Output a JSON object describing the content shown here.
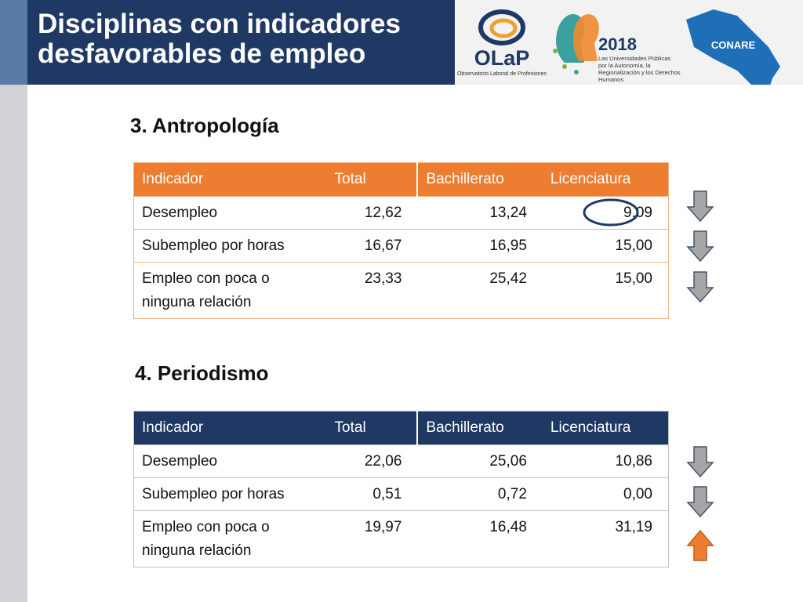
{
  "header": {
    "title": "Disciplinas con indicadores desfavorables de empleo"
  },
  "logos": {
    "olap": "OLaP",
    "olap_subtitle": "Observatorio Laboral de Profesiones",
    "year": "2018",
    "motto": "Las Universidades Públicas por la Autonomía, la Regionalización y los Derechos Humanos",
    "conare": "CONARE"
  },
  "sections": [
    {
      "title": "3. Antropología",
      "columns": [
        "Indicador",
        "Total",
        "Bachillerato",
        "Licenciatura"
      ],
      "rows": [
        [
          "Desempleo",
          "12,62",
          "13,24",
          "9,09"
        ],
        [
          "Subempleo por horas",
          "16,67",
          "16,95",
          "15,00"
        ],
        [
          "Empleo con poca o ninguna relación",
          "23,33",
          "25,42",
          "15,00"
        ]
      ]
    },
    {
      "title": "4. Periodismo",
      "columns": [
        "Indicador",
        "Total",
        "Bachillerato",
        "Licenciatura"
      ],
      "rows": [
        [
          "Desempleo",
          "22,06",
          "25,06",
          "10,86"
        ],
        [
          "Subempleo por horas",
          "0,51",
          "0,72",
          "0,00"
        ],
        [
          "Empleo con poca o ninguna relación",
          "19,97",
          "16,48",
          "31,19"
        ]
      ]
    }
  ]
}
